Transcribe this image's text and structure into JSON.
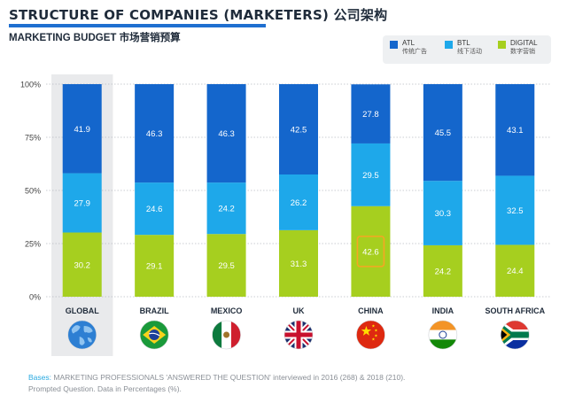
{
  "header": {
    "title": "STRUCTURE OF COMPANIES (MARKETERS) 公司架构",
    "subtitle": "MARKETING BUDGET 市场营销预算"
  },
  "legend": [
    {
      "label": "ATL",
      "sub": "传统广告",
      "color": "#1466cc"
    },
    {
      "label": "BTL",
      "sub": "线下活动",
      "color": "#1ea8ea"
    },
    {
      "label": "DIGITAL",
      "sub": "数字营销",
      "color": "#a6cf1f"
    }
  ],
  "footnote": {
    "lead": "Bases:",
    "line1": " MARKETING PROFESSIONALS 'ANSWERED THE QUESTION' interviewed in 2016 (268) & 2018 (210).",
    "line2": "Prompted Question. Data in Percentages (%)."
  },
  "chart_data": {
    "type": "bar",
    "stacked": true,
    "categories": [
      "GLOBAL",
      "BRAZIL",
      "MEXICO",
      "UK",
      "CHINA",
      "INDIA",
      "SOUTH AFRICA"
    ],
    "series": [
      {
        "name": "DIGITAL",
        "values": [
          30.2,
          29.1,
          29.5,
          31.3,
          42.6,
          24.2,
          24.4
        ],
        "color": "#a6cf1f"
      },
      {
        "name": "BTL",
        "values": [
          27.9,
          24.6,
          24.2,
          26.2,
          29.5,
          30.3,
          32.5
        ],
        "color": "#1ea8ea"
      },
      {
        "name": "ATL",
        "values": [
          41.9,
          46.3,
          46.3,
          42.5,
          27.8,
          45.5,
          43.1
        ],
        "color": "#1466cc"
      }
    ],
    "yticks": [
      "0%",
      "25%",
      "50%",
      "75%",
      "100%"
    ],
    "ylim": [
      0,
      100
    ],
    "grid": true,
    "highlight": {
      "category": "CHINA",
      "series": "DIGITAL",
      "color": "#f5a623"
    },
    "highlight_background": "GLOBAL",
    "flags": [
      "world-globe-icon",
      "brazil-flag-icon",
      "mexico-flag-icon",
      "uk-flag-icon",
      "china-flag-icon",
      "india-flag-icon",
      "south-africa-flag-icon"
    ]
  }
}
